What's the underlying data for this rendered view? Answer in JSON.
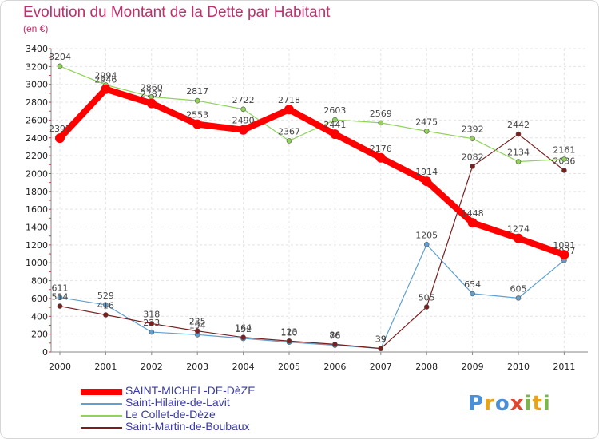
{
  "title": "Evolution du Montant de la Dette par Habitant",
  "unit_label": "(en €)",
  "brand": {
    "letters": [
      "P",
      "r",
      "o",
      "x",
      "i",
      "t",
      "i"
    ],
    "colors": [
      "#4a90d9",
      "#e8a317",
      "#4a90d9",
      "#e0452f",
      "#7ab648",
      "#e8a317",
      "#7ab648"
    ]
  },
  "chart_data": {
    "type": "line",
    "x": [
      "2000",
      "2001",
      "2002",
      "2003",
      "2004",
      "2005",
      "2006",
      "2007",
      "2008",
      "2009",
      "2010",
      "2011"
    ],
    "ylim": [
      0,
      3400
    ],
    "yticks": [
      0,
      200,
      400,
      600,
      800,
      1000,
      1200,
      1400,
      1600,
      1800,
      2000,
      2200,
      2400,
      2600,
      2800,
      3000,
      3200,
      3400
    ],
    "series": [
      {
        "name": "SAINT-MICHEL-DE-DèZE",
        "color": "#ff0000",
        "width": 8,
        "values": [
          2397,
          2946,
          2787,
          2553,
          2490,
          2718,
          2441,
          2176,
          1914,
          1448,
          1274,
          1091
        ]
      },
      {
        "name": "Saint-Hilaire-de-Lavit",
        "color": "#5fa0d0",
        "width": 1.2,
        "values": [
          611,
          529,
          223,
          194,
          152,
          110,
          76,
          39,
          1205,
          654,
          605,
          1027
        ]
      },
      {
        "name": "Le Collet-de-Dèze",
        "color": "#8fd35a",
        "width": 1.2,
        "values": [
          3204,
          2994,
          2860,
          2817,
          2722,
          2367,
          2603,
          2569,
          2475,
          2392,
          2134,
          2161
        ]
      },
      {
        "name": "Saint-Martin-de-Boubaux",
        "color": "#7a1e1e",
        "width": 1.2,
        "values": [
          514,
          416,
          318,
          235,
          164,
          123,
          86,
          39,
          505,
          2082,
          2442,
          2036
        ]
      }
    ]
  }
}
